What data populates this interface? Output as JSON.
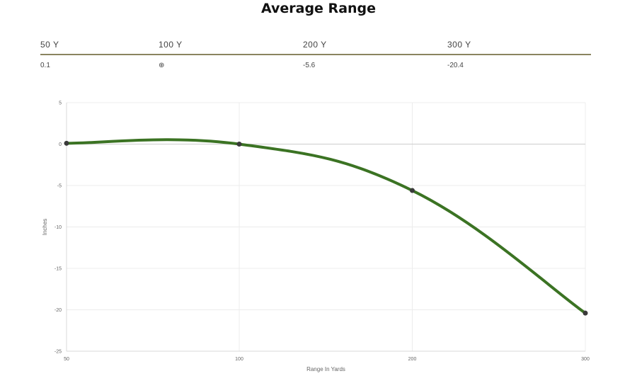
{
  "page": {
    "title": "Average Range"
  },
  "range_table": {
    "headers": [
      "50 Y",
      "100 Y",
      "200 Y",
      "300 Y"
    ],
    "values": [
      "0.1",
      "⊕",
      "-5.6",
      "-20.4"
    ]
  },
  "chart_data": {
    "type": "line",
    "title": "",
    "xlabel": "Range In Yards",
    "ylabel": "Inches",
    "x": [
      50,
      100,
      200,
      300
    ],
    "series": [
      {
        "values": [
          0.1,
          0,
          -5.6,
          -20.4
        ],
        "color": "#3b7323"
      }
    ],
    "x_ticks": [
      50,
      100,
      200,
      300
    ],
    "y_ticks": [
      5,
      0,
      -5,
      -10,
      -15,
      -20,
      -25
    ],
    "ylim": [
      -25,
      5
    ],
    "grid": true,
    "smooth": true,
    "point_color": "#3a3a3a",
    "zero_line_color": "#cccccc"
  }
}
